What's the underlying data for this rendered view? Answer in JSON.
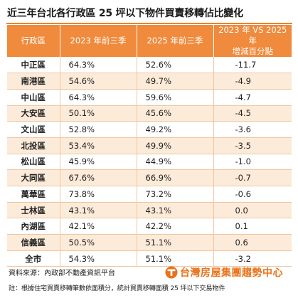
{
  "header": {
    "title": "近三年台北各行政區 25 坪以下物件買賣移轉佔比變化"
  },
  "table": {
    "columns": [
      "行政區",
      "2023 年前三季",
      "2025 年前三季",
      "2023 年 VS 2025 年",
      "增減百分點"
    ]
  },
  "chart_data": {
    "type": "table",
    "title": "近三年台北各行政區 25 坪以下物件買賣移轉佔比變化",
    "columns": [
      "行政區",
      "2023 年前三季",
      "2025 年前三季",
      "2023 年 VS 2025 年 增減百分點"
    ],
    "rows": [
      {
        "district": "中正區",
        "y2023": "64.3%",
        "y2025": "52.6%",
        "diff": "-11.7"
      },
      {
        "district": "南港區",
        "y2023": "54.6%",
        "y2025": "49.7%",
        "diff": "-4.9"
      },
      {
        "district": "中山區",
        "y2023": "64.3%",
        "y2025": "59.6%",
        "diff": "-4.7"
      },
      {
        "district": "大安區",
        "y2023": "50.1%",
        "y2025": "45.6%",
        "diff": "-4.5"
      },
      {
        "district": "文山區",
        "y2023": "52.8%",
        "y2025": "49.2%",
        "diff": "-3.6"
      },
      {
        "district": "北投區",
        "y2023": "53.4%",
        "y2025": "49.9%",
        "diff": "-3.5"
      },
      {
        "district": "松山區",
        "y2023": "45.9%",
        "y2025": "44.9%",
        "diff": "-1.0"
      },
      {
        "district": "大同區",
        "y2023": "67.6%",
        "y2025": "66.9%",
        "diff": "-0.7"
      },
      {
        "district": "萬華區",
        "y2023": "73.8%",
        "y2025": "73.2%",
        "diff": "-0.6"
      },
      {
        "district": "士林區",
        "y2023": "43.1%",
        "y2025": "43.1%",
        "diff": "0.0"
      },
      {
        "district": "內湖區",
        "y2023": "42.1%",
        "y2025": "42.2%",
        "diff": "0.1"
      },
      {
        "district": "信義區",
        "y2023": "50.5%",
        "y2025": "51.1%",
        "diff": "0.6"
      },
      {
        "district": "全市",
        "y2023": "54.3%",
        "y2025": "51.1%",
        "diff": "-3.2"
      }
    ]
  },
  "footer": {
    "source": "資料來源：內政部不動產資訊平台",
    "note": "註：根據住宅買賣移轉筆數依面積分，統計買賣移轉面積 25 坪以下交易物件",
    "brand": "台灣房屋集團趨勢中心",
    "brand_icon": "taiwan-realty-logo-icon"
  },
  "colors": {
    "header_bg": "#f08a3c",
    "stripe": "#fdebd9",
    "brand": "#e8731c"
  }
}
